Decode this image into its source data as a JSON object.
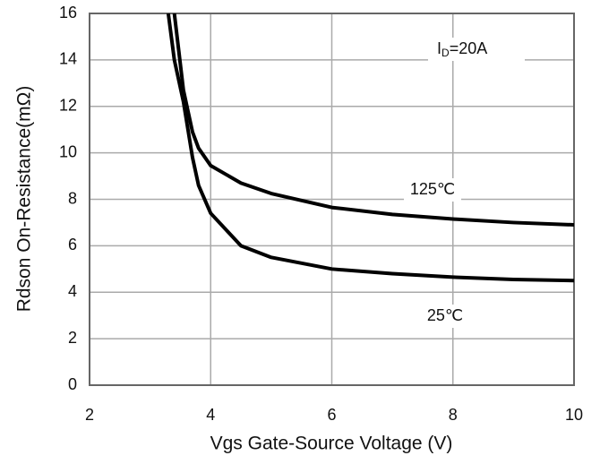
{
  "chart_data": {
    "type": "line",
    "xlabel": "Vgs Gate-Source Voltage (V)",
    "ylabel": "Rdson On-Resistance(mΩ)",
    "x": [
      3.3,
      3.4,
      3.55,
      3.7,
      3.8,
      4,
      4.5,
      5,
      6,
      7,
      8,
      9,
      10
    ],
    "series": [
      {
        "name": "25℃",
        "color": "#000000",
        "values": [
          16,
          14,
          12.2,
          9.8,
          8.6,
          7.4,
          6.0,
          5.5,
          5.0,
          4.8,
          4.65,
          4.55,
          4.5
        ]
      },
      {
        "name": "125℃",
        "color": "#000000",
        "values": [
          null,
          16,
          12.7,
          10.9,
          10.2,
          9.45,
          8.7,
          8.25,
          7.65,
          7.35,
          7.15,
          7.0,
          6.9
        ]
      }
    ],
    "annotation": {
      "main": "I",
      "subscript": "D",
      "rest": "=20A"
    },
    "xlim": [
      2,
      10
    ],
    "xticks": [
      2,
      4,
      6,
      8,
      10
    ],
    "ylim": [
      0,
      16
    ],
    "yticks": [
      0,
      2,
      4,
      6,
      8,
      10,
      12,
      14,
      16
    ],
    "grid": true
  }
}
